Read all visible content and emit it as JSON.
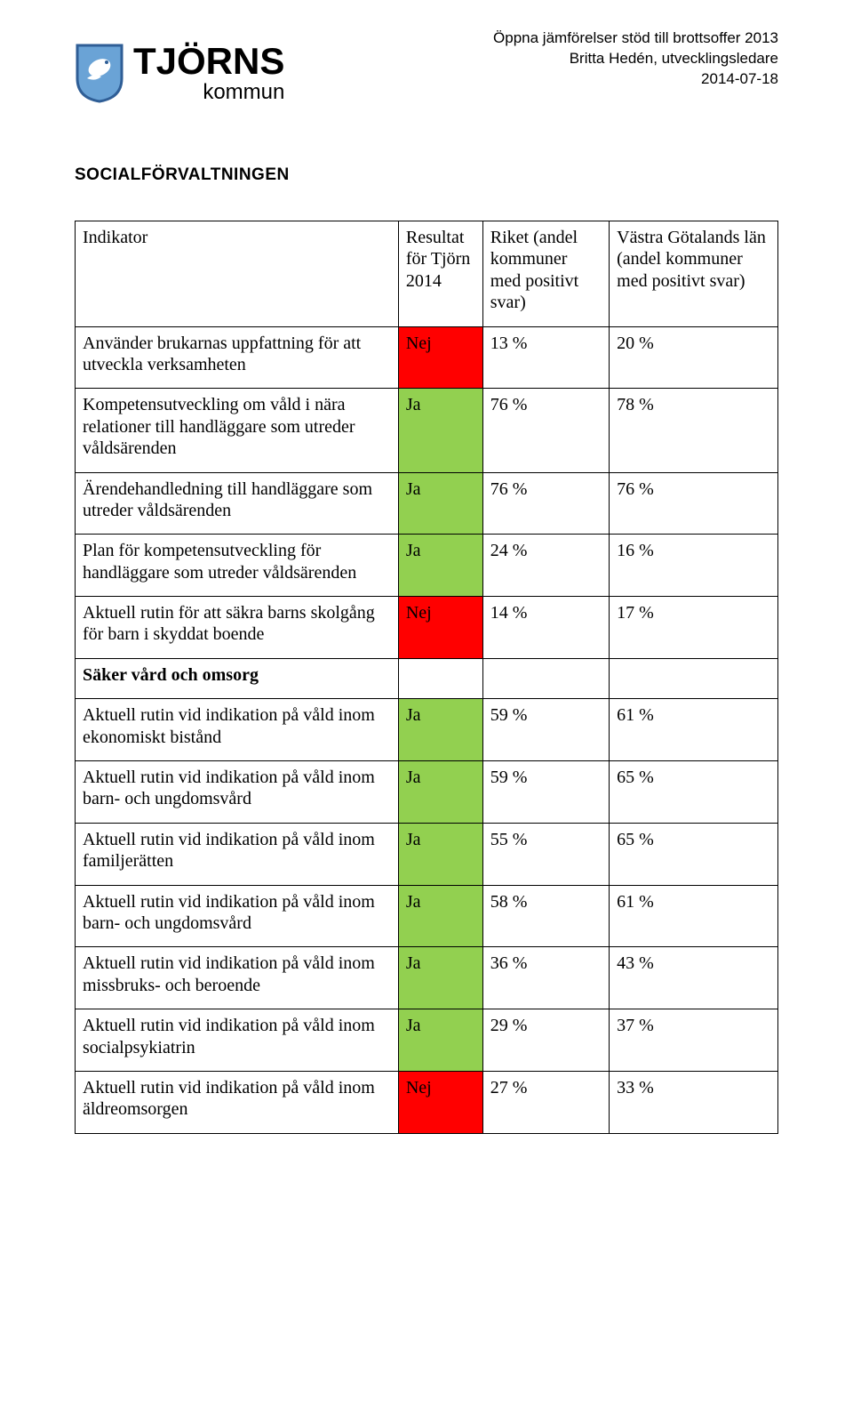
{
  "logo": {
    "word": "TJÖRNS",
    "sub": "kommun",
    "shield": {
      "border_color": "#3a6aa5",
      "fill": "#6aa3d6",
      "accent": "#ffffff"
    }
  },
  "header_right": {
    "line1": "Öppna jämförelser stöd till brottsoffer 2013",
    "line2": "Britta Hedén, utvecklingsledare",
    "line3": "2014-07-18"
  },
  "department": "SOCIALFÖRVALTNINGEN",
  "columns": {
    "indicator": "Indikator",
    "result": "Resultat för Tjörn 2014",
    "riket": "Riket (andel kommuner med positivt svar)",
    "vg": "Västra Götalands län (andel kommuner med positivt svar)"
  },
  "colors": {
    "red": "#ff0000",
    "green": "#92d050",
    "border": "#000000",
    "text": "#000000",
    "bg": "#ffffff"
  },
  "rows": [
    {
      "indicator": "Använder brukarnas uppfattning för att utveckla verksamheten",
      "result": "Nej",
      "result_color": "red",
      "riket": "13 %",
      "vg": "20 %"
    },
    {
      "indicator": "Kompetensutveckling om våld i nära relationer till handläggare som utreder våldsärenden",
      "result": "Ja",
      "result_color": "green",
      "riket": "76 %",
      "vg": "78 %"
    },
    {
      "indicator": "Ärendehandledning till handläggare som utreder våldsärenden",
      "result": "Ja",
      "result_color": "green",
      "riket": "76 %",
      "vg": "76 %"
    },
    {
      "indicator": "Plan för kompetensutveckling för handläggare som utreder våldsärenden",
      "result": "Ja",
      "result_color": "green",
      "riket": "24 %",
      "vg": "16 %"
    },
    {
      "indicator": "Aktuell rutin för att säkra barns skolgång för barn i skyddat boende",
      "result": "Nej",
      "result_color": "red",
      "riket": "14 %",
      "vg": "17 %"
    }
  ],
  "section2_title": "Säker vård och omsorg",
  "rows2": [
    {
      "indicator": "Aktuell rutin vid indikation på våld inom ekonomiskt bistånd",
      "result": "Ja",
      "result_color": "green",
      "riket": "59 %",
      "vg": "61 %"
    },
    {
      "indicator": "Aktuell rutin vid indikation på våld inom barn- och ungdomsvård",
      "result": "Ja",
      "result_color": "green",
      "riket": "59 %",
      "vg": "65 %"
    },
    {
      "indicator": "Aktuell rutin vid indikation på våld inom familjerätten",
      "result": "Ja",
      "result_color": "green",
      "riket": "55 %",
      "vg": "65 %"
    },
    {
      "indicator": "Aktuell rutin vid indikation på våld inom barn- och ungdomsvård",
      "result": "Ja",
      "result_color": "green",
      "riket": "58 %",
      "vg": "61 %"
    },
    {
      "indicator": "Aktuell rutin vid indikation på våld inom missbruks- och beroende",
      "result": "Ja",
      "result_color": "green",
      "riket": "36 %",
      "vg": "43 %"
    },
    {
      "indicator": "Aktuell rutin vid indikation på våld inom socialpsykiatrin",
      "result": "Ja",
      "result_color": "green",
      "riket": "29 %",
      "vg": "37 %"
    },
    {
      "indicator": "Aktuell rutin vid indikation på våld inom äldreomsorgen",
      "result": "Nej",
      "result_color": "red",
      "riket": "27 %",
      "vg": "33 %"
    }
  ]
}
